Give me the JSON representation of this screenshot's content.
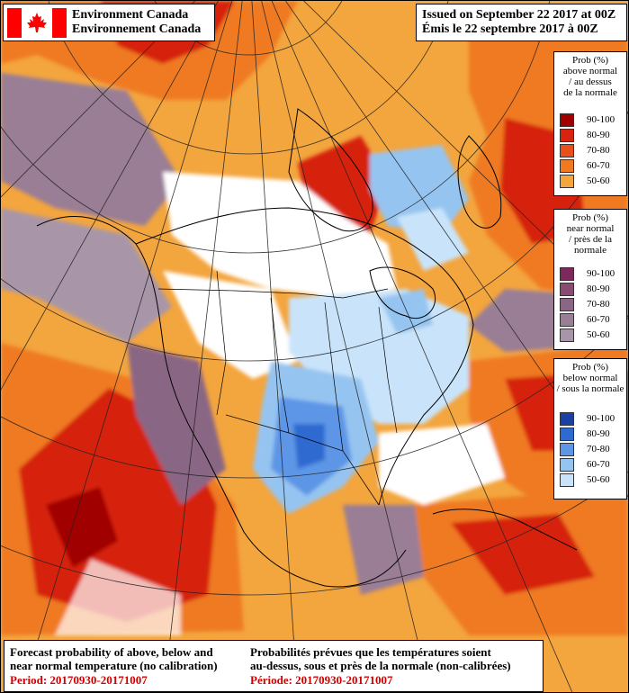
{
  "header": {
    "agency_en": "Environment Canada",
    "agency_fr": "Environnement Canada",
    "issued_en": "Issued on September 22 2017 at 00Z",
    "issued_fr": "Émis le 22 septembre 2017 à 00Z"
  },
  "legends": {
    "above": {
      "title_lines": [
        "Prob (%)",
        "above normal",
        "/ au dessus",
        "de la normale"
      ],
      "ranges": [
        "90-100",
        "80-90",
        "70-80",
        "60-70",
        "50-60"
      ],
      "colors": [
        "#a10000",
        "#d62410",
        "#e8501c",
        "#ef7a22",
        "#f3a53e"
      ]
    },
    "near": {
      "title_lines": [
        "Prob (%)",
        "near normal",
        "/ près de la",
        "normale"
      ],
      "ranges": [
        "90-100",
        "80-90",
        "70-80",
        "60-70",
        "50-60"
      ],
      "colors": [
        "#7c2a5e",
        "#8a4a72",
        "#8a6685",
        "#9a7e95",
        "#a896a8"
      ]
    },
    "below": {
      "title_lines": [
        "Prob (%)",
        "below normal",
        "/ sous la normale"
      ],
      "ranges": [
        "90-100",
        "80-90",
        "70-80",
        "60-70",
        "50-60"
      ],
      "colors": [
        "#1c3fa3",
        "#2f6ad0",
        "#5d96e6",
        "#96c4f0",
        "#c9e4fa"
      ]
    }
  },
  "caption": {
    "en_line1": "Forecast probability of above, below and",
    "en_line2": "near normal temperature (no calibration)",
    "en_period": "Period: 20170930-20171007",
    "fr_line1": "Probabilités prévues que les températures soient",
    "fr_line2": "au-dessus, sous et près de la normale (non-calibrées)",
    "fr_period": "Période: 20170930-20171007"
  },
  "colors": {
    "above_strong": "#a10000",
    "above_mid": "#d62410",
    "above_light": "#ef7a22",
    "above_pale": "#f3a53e",
    "near": "#9a7e95",
    "below_strong": "#2f6ad0",
    "below_light": "#96c4f0",
    "flag_red": "#ff0000"
  },
  "map": {
    "projection": "polar stereographic",
    "region": "North America"
  }
}
